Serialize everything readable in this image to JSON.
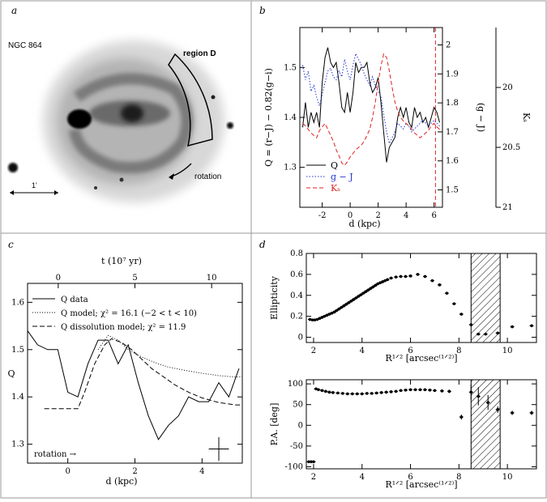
{
  "panels": {
    "a": {
      "letter": "a",
      "galaxy_label": "NGC 864",
      "region_label": "region D",
      "rotation_label": "rotation",
      "scale_label": "1'"
    },
    "b": {
      "letter": "b"
    },
    "c": {
      "letter": "c",
      "rotation_label": "rotation →"
    },
    "d": {
      "letter": "d"
    }
  },
  "chart_data": [
    {
      "panel": "b",
      "type": "line",
      "xlabel": "d (kpc)",
      "ylabel_left": "Q = (r−J) − 0.82(g−i)",
      "ylabel_right": "(g − J)",
      "ylabel_far_right": "Kₛ",
      "xlim": [
        -3.6,
        6.6
      ],
      "ylim_left": [
        1.22,
        1.58
      ],
      "ylim_right": [
        1.44,
        2.06
      ],
      "ylim_far_right": [
        19.5,
        21.0
      ],
      "far_right_inverted": true,
      "x_ticks": [
        "-2",
        "0",
        "2",
        "4",
        "6"
      ],
      "y_ticks_left": [
        "1.3",
        "1.4",
        "1.5"
      ],
      "y_ticks_right": [
        "1.5",
        "1.6",
        "1.7",
        "1.8",
        "1.9",
        "2"
      ],
      "y_ticks_far_right": [
        "20",
        "20.5",
        "21"
      ],
      "legend_position": "bottom-left",
      "vertical_marker_x": 6.1,
      "series": [
        {
          "name": "Q",
          "color": "#000000",
          "style": "solid",
          "axis": "left",
          "x": [
            -3.4,
            -3.2,
            -3.0,
            -2.8,
            -2.6,
            -2.4,
            -2.2,
            -2.0,
            -1.8,
            -1.6,
            -1.4,
            -1.2,
            -1.0,
            -0.8,
            -0.6,
            -0.4,
            -0.2,
            0.0,
            0.2,
            0.4,
            0.6,
            0.8,
            1.0,
            1.2,
            1.4,
            1.6,
            1.8,
            2.0,
            2.2,
            2.4,
            2.6,
            2.8,
            3.0,
            3.2,
            3.4,
            3.6,
            3.8,
            4.0,
            4.2,
            4.4,
            4.6,
            4.8,
            5.0,
            5.2,
            5.4,
            5.6,
            5.8,
            6.0,
            6.2,
            6.4
          ],
          "y": [
            1.38,
            1.43,
            1.38,
            1.41,
            1.39,
            1.41,
            1.38,
            1.47,
            1.52,
            1.54,
            1.51,
            1.5,
            1.51,
            1.47,
            1.42,
            1.41,
            1.45,
            1.41,
            1.45,
            1.51,
            1.49,
            1.5,
            1.5,
            1.51,
            1.47,
            1.45,
            1.46,
            1.48,
            1.43,
            1.37,
            1.31,
            1.34,
            1.35,
            1.36,
            1.4,
            1.42,
            1.4,
            1.42,
            1.39,
            1.38,
            1.42,
            1.4,
            1.41,
            1.39,
            1.4,
            1.38,
            1.4,
            1.42,
            1.41,
            1.39
          ]
        },
        {
          "name": "g − J",
          "color": "#2233cc",
          "style": "dotted",
          "axis": "right",
          "x": [
            -3.4,
            -3.2,
            -3.0,
            -2.8,
            -2.6,
            -2.4,
            -2.2,
            -2.0,
            -1.8,
            -1.6,
            -1.4,
            -1.2,
            -1.0,
            -0.8,
            -0.6,
            -0.4,
            -0.2,
            0.0,
            0.2,
            0.4,
            0.6,
            0.8,
            1.0,
            1.2,
            1.4,
            1.6,
            1.8,
            2.0,
            2.2,
            2.4,
            2.6,
            2.8,
            3.0,
            3.2,
            3.4,
            3.6,
            3.8,
            4.0,
            4.2,
            4.4,
            4.6,
            4.8,
            5.0,
            5.2,
            5.4,
            5.6,
            5.8,
            6.0,
            6.2,
            6.4
          ],
          "y": [
            1.93,
            1.88,
            1.91,
            1.84,
            1.86,
            1.82,
            1.79,
            1.83,
            1.87,
            1.91,
            1.92,
            1.89,
            1.88,
            1.91,
            1.89,
            1.95,
            1.91,
            1.88,
            1.93,
            1.97,
            1.95,
            1.93,
            1.9,
            1.88,
            1.86,
            1.89,
            1.86,
            1.84,
            1.82,
            1.76,
            1.7,
            1.66,
            1.68,
            1.7,
            1.73,
            1.72,
            1.71,
            1.73,
            1.72,
            1.7,
            1.71,
            1.72,
            1.73,
            1.74,
            1.73,
            1.72,
            1.73,
            1.74,
            1.73,
            1.72
          ]
        },
        {
          "name": "Kₛ",
          "color": "#dd2222",
          "style": "dashed",
          "axis": "far_right",
          "x": [
            -3.4,
            -3.2,
            -3.0,
            -2.8,
            -2.6,
            -2.4,
            -2.2,
            -2.0,
            -1.8,
            -1.6,
            -1.4,
            -1.2,
            -1.0,
            -0.8,
            -0.6,
            -0.4,
            -0.2,
            0.0,
            0.2,
            0.4,
            0.6,
            0.8,
            1.0,
            1.2,
            1.4,
            1.6,
            1.8,
            2.0,
            2.2,
            2.4,
            2.6,
            2.8,
            3.0,
            3.2,
            3.4,
            3.6,
            3.8,
            4.0,
            4.2,
            4.4,
            4.6,
            4.8,
            5.0,
            5.2,
            5.4,
            5.6,
            5.8,
            6.0,
            6.2,
            6.4
          ],
          "y": [
            20.3,
            20.32,
            20.35,
            20.38,
            20.4,
            20.42,
            20.36,
            20.33,
            20.3,
            20.35,
            20.4,
            20.45,
            20.52,
            20.57,
            20.63,
            20.65,
            20.62,
            20.58,
            20.55,
            20.52,
            20.5,
            20.48,
            20.45,
            20.4,
            20.35,
            20.25,
            20.12,
            19.96,
            19.82,
            19.72,
            19.75,
            19.86,
            20.0,
            20.12,
            20.2,
            20.25,
            20.28,
            20.3,
            20.32,
            20.35,
            20.38,
            20.4,
            20.42,
            20.4,
            20.38,
            20.36,
            20.32,
            20.3,
            20.33,
            20.35
          ]
        }
      ]
    },
    {
      "panel": "c",
      "type": "line",
      "xlabel": "d (kpc)",
      "top_axis_label": "t (10⁷ yr)",
      "ylabel": "Q",
      "xlim": [
        -1.2,
        5.2
      ],
      "ylim": [
        1.26,
        1.64
      ],
      "top_axis_range": [
        -2,
        12
      ],
      "x_ticks": [
        "0",
        "2",
        "4"
      ],
      "top_ticks": [
        "0",
        "5",
        "10"
      ],
      "y_ticks": [
        "1.3",
        "1.4",
        "1.5",
        "1.6"
      ],
      "legend_position": "top-left",
      "errorbar": {
        "x": 4.5,
        "y": 1.29,
        "xerr": 0.3,
        "yerr": 0.025
      },
      "series": [
        {
          "name": "Q data",
          "style": "solid",
          "x": [
            -1.2,
            -0.9,
            -0.6,
            -0.3,
            0.0,
            0.3,
            0.6,
            0.9,
            1.2,
            1.5,
            1.8,
            2.1,
            2.4,
            2.7,
            3.0,
            3.3,
            3.6,
            3.9,
            4.2,
            4.5,
            4.8,
            5.1
          ],
          "y": [
            1.54,
            1.51,
            1.5,
            1.5,
            1.41,
            1.4,
            1.47,
            1.52,
            1.52,
            1.47,
            1.51,
            1.43,
            1.36,
            1.31,
            1.34,
            1.36,
            1.4,
            1.39,
            1.39,
            1.43,
            1.4,
            1.46
          ]
        },
        {
          "name": "Q model; χ² = 16.1 (−2 < t < 10)",
          "style": "dotted",
          "x": [
            0.9,
            1.2,
            1.5,
            1.8,
            2.1,
            2.4,
            2.7,
            3.0,
            3.5,
            4.0,
            4.5,
            5.0,
            5.2
          ],
          "y": [
            1.5,
            1.53,
            1.52,
            1.5,
            1.488,
            1.478,
            1.47,
            1.463,
            1.456,
            1.45,
            1.445,
            1.442,
            1.443
          ]
        },
        {
          "name": "Q dissolution model; χ² = 11.9",
          "style": "dashed",
          "x": [
            -0.7,
            0.3,
            0.5,
            0.8,
            1.1,
            1.3,
            1.6,
            1.9,
            2.2,
            2.5,
            2.8,
            3.2,
            3.6,
            4.0,
            4.5,
            5.0,
            5.2
          ],
          "y": [
            1.375,
            1.375,
            1.41,
            1.47,
            1.51,
            1.523,
            1.515,
            1.5,
            1.48,
            1.46,
            1.445,
            1.425,
            1.41,
            1.398,
            1.388,
            1.383,
            1.383
          ]
        }
      ]
    },
    {
      "panel": "d-top",
      "type": "scatter",
      "xlabel": "R¹ᐟ² [arcsec⁽¹ᐟ²⁾]",
      "ylabel": "Ellipticity",
      "xlim": [
        1.7,
        11.2
      ],
      "ylim": [
        -0.05,
        0.8
      ],
      "x_ticks": [
        "2",
        "4",
        "6",
        "8",
        "10"
      ],
      "y_ticks": [
        "0",
        "0.2",
        "0.4",
        "0.6",
        "0.8"
      ],
      "hatched_region_x": [
        8.5,
        9.7
      ],
      "series": [
        {
          "name": "",
          "x": [
            1.85,
            1.95,
            2.05,
            2.15,
            2.25,
            2.35,
            2.45,
            2.55,
            2.65,
            2.75,
            2.85,
            2.95,
            3.05,
            3.15,
            3.25,
            3.35,
            3.45,
            3.55,
            3.65,
            3.75,
            3.85,
            3.95,
            4.05,
            4.15,
            4.25,
            4.35,
            4.45,
            4.55,
            4.65,
            4.75,
            4.85,
            4.95,
            5.05,
            5.2,
            5.4,
            5.6,
            5.8,
            6.0,
            6.3,
            6.6,
            6.9,
            7.2,
            7.5,
            7.8,
            8.1,
            8.5,
            8.8,
            9.1,
            9.6,
            10.2,
            11.0
          ],
          "y": [
            0.17,
            0.165,
            0.165,
            0.17,
            0.18,
            0.19,
            0.2,
            0.21,
            0.22,
            0.23,
            0.24,
            0.255,
            0.27,
            0.285,
            0.3,
            0.315,
            0.33,
            0.345,
            0.36,
            0.375,
            0.39,
            0.405,
            0.42,
            0.435,
            0.45,
            0.465,
            0.48,
            0.495,
            0.51,
            0.52,
            0.53,
            0.54,
            0.55,
            0.565,
            0.575,
            0.58,
            0.58,
            0.585,
            0.6,
            0.58,
            0.54,
            0.5,
            0.42,
            0.32,
            0.22,
            0.12,
            0.03,
            0.03,
            0.04,
            0.1,
            0.11
          ]
        }
      ]
    },
    {
      "panel": "d-bottom",
      "type": "scatter",
      "xlabel": "R¹ᐟ² [arcsec⁽¹ᐟ²⁾]",
      "ylabel": "P.A. [deg]",
      "xlim": [
        1.7,
        11.2
      ],
      "ylim": [
        -105,
        110
      ],
      "x_ticks": [
        "2",
        "4",
        "6",
        "8",
        "10"
      ],
      "y_ticks": [
        "-100",
        "-50",
        "0",
        "50",
        "100"
      ],
      "hatched_region_x": [
        8.5,
        9.7
      ],
      "series": [
        {
          "name": "",
          "x": [
            1.8,
            1.9,
            2.0,
            2.1,
            2.2,
            2.35,
            2.5,
            2.65,
            2.8,
            3.0,
            3.2,
            3.4,
            3.6,
            3.8,
            4.0,
            4.2,
            4.4,
            4.6,
            4.8,
            5.0,
            5.2,
            5.4,
            5.6,
            5.8,
            6.0,
            6.2,
            6.4,
            6.6,
            6.8,
            7.0,
            7.3,
            7.6,
            8.1,
            8.5,
            8.8,
            9.2,
            9.6,
            10.2,
            11.0
          ],
          "y": [
            -88,
            -88,
            -88,
            88,
            86,
            84,
            82,
            80,
            79,
            78,
            77,
            76,
            76,
            76,
            76,
            77,
            77,
            78,
            79,
            80,
            81,
            82,
            84,
            85,
            86,
            86,
            86,
            86,
            85,
            84,
            83,
            82,
            20,
            80,
            70,
            55,
            38,
            30,
            30
          ],
          "yerr": [
            3,
            3,
            3,
            3,
            3,
            3,
            3,
            3,
            3,
            3,
            3,
            3,
            3,
            3,
            3,
            3,
            3,
            3,
            3,
            3,
            3,
            3,
            3,
            3,
            3,
            3,
            3,
            3,
            3,
            3,
            3,
            4,
            6,
            18,
            22,
            18,
            8,
            5,
            5
          ]
        }
      ]
    }
  ]
}
